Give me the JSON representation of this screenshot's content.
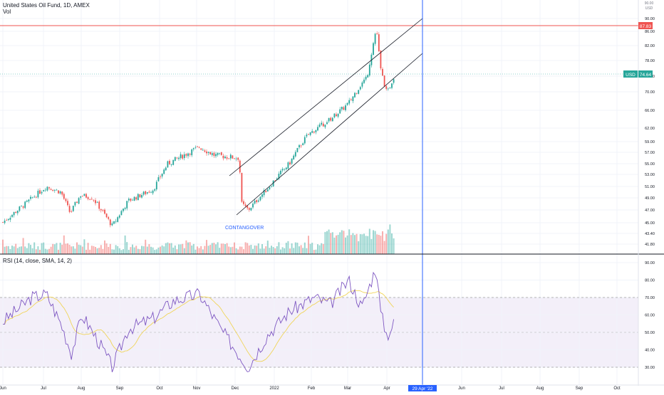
{
  "header": {
    "symbol_title": "United States Oil Fund, 1D, AMEX",
    "volume_label": "Vol",
    "rsi_label": "RSI (14, close, SMA, 14, 2)"
  },
  "badges": {
    "horizontal_level": "87.83",
    "currency": "USD",
    "last_price": "74.64",
    "crosshair_date": "29 Apr '22",
    "scale_toggle_top": "90.00",
    "scale_toggle_mid": "USD"
  },
  "annotations": {
    "contango_text": "CONTANGOVER"
  },
  "colors": {
    "up": "#26a69a",
    "down": "#ef5350",
    "rsi": "#7e57c2",
    "rsi_ma": "#f0d55a",
    "channel": "#131722",
    "level": "#ef5350",
    "crosshair": "#2962ff"
  },
  "chart_data": [
    {
      "type": "candlestick",
      "title": "United States Oil Fund, 1D, AMEX",
      "ylim": [
        40.5,
        91.5
      ],
      "price_ticks": [
        41.8,
        43.4,
        45.0,
        47.0,
        49.0,
        51.0,
        53.0,
        55.0,
        57.0,
        59.0,
        62.0,
        66.0,
        70.0,
        74.0,
        78.0,
        82.0,
        86.0,
        90.0
      ],
      "x_tick_labels": [
        "Jun",
        "Jul",
        "Aug",
        "Sep",
        "Oct",
        "Nov",
        "Dec",
        "2022",
        "Feb",
        "Mar",
        "Apr",
        "Jun",
        "Jul",
        "Aug",
        "Sep",
        "Oct"
      ],
      "horizontal_level": 87.83,
      "last_price": 74.64,
      "channel": {
        "upper": [
          [
            "2021-11-29",
            52.5
          ],
          [
            "2022-04-29",
            89.8
          ]
        ],
        "lower": [
          [
            "2021-12-03",
            46.5
          ],
          [
            "2022-04-29",
            80.0
          ]
        ]
      },
      "approx_closes": [
        {
          "date": "2021-06-01",
          "close": 45.6
        },
        {
          "date": "2021-06-15",
          "close": 48.0
        },
        {
          "date": "2021-07-01",
          "close": 51.0
        },
        {
          "date": "2021-07-12",
          "close": 50.0
        },
        {
          "date": "2021-07-19",
          "close": 46.5
        },
        {
          "date": "2021-07-27",
          "close": 49.5
        },
        {
          "date": "2021-08-05",
          "close": 49.0
        },
        {
          "date": "2021-08-20",
          "close": 44.5
        },
        {
          "date": "2021-09-01",
          "close": 48.5
        },
        {
          "date": "2021-09-20",
          "close": 50.5
        },
        {
          "date": "2021-10-01",
          "close": 55.0
        },
        {
          "date": "2021-10-25",
          "close": 58.0
        },
        {
          "date": "2021-11-05",
          "close": 56.5
        },
        {
          "date": "2021-11-24",
          "close": 56.0
        },
        {
          "date": "2021-11-26",
          "close": 48.0
        },
        {
          "date": "2021-12-01",
          "close": 47.0
        },
        {
          "date": "2021-12-15",
          "close": 50.5
        },
        {
          "date": "2022-01-01",
          "close": 55.0
        },
        {
          "date": "2022-01-15",
          "close": 60.5
        },
        {
          "date": "2022-02-01",
          "close": 64.0
        },
        {
          "date": "2022-02-15",
          "close": 67.5
        },
        {
          "date": "2022-03-01",
          "close": 74.0
        },
        {
          "date": "2022-03-08",
          "close": 87.0
        },
        {
          "date": "2022-03-11",
          "close": 76.0
        },
        {
          "date": "2022-03-16",
          "close": 69.5
        },
        {
          "date": "2022-03-22",
          "close": 74.6
        }
      ]
    },
    {
      "type": "bar",
      "title": "Vol",
      "series": [
        {
          "name": "Volume"
        }
      ],
      "relative_values": [
        0.12,
        0.35,
        0.28,
        0.18,
        0.5,
        0.85,
        0.6,
        0.2
      ]
    },
    {
      "type": "line",
      "title": "RSI (14, close, SMA, 14, 2)",
      "ylim": [
        25,
        93
      ],
      "y_ticks": [
        30.0,
        40.0,
        50.0,
        60.0,
        70.0,
        80.0,
        90.0
      ],
      "bands": {
        "upper": 70,
        "middle": 50,
        "lower": 30
      },
      "series": [
        {
          "name": "RSI",
          "points": [
            {
              "date": "2021-06-01",
              "value": 58
            },
            {
              "date": "2021-06-20",
              "value": 70
            },
            {
              "date": "2021-07-01",
              "value": 72
            },
            {
              "date": "2021-07-12",
              "value": 55
            },
            {
              "date": "2021-07-20",
              "value": 38
            },
            {
              "date": "2021-07-28",
              "value": 60
            },
            {
              "date": "2021-08-10",
              "value": 44
            },
            {
              "date": "2021-08-20",
              "value": 30
            },
            {
              "date": "2021-09-01",
              "value": 52
            },
            {
              "date": "2021-09-20",
              "value": 58
            },
            {
              "date": "2021-10-05",
              "value": 68
            },
            {
              "date": "2021-10-25",
              "value": 72
            },
            {
              "date": "2021-11-10",
              "value": 52
            },
            {
              "date": "2021-11-25",
              "value": 36
            },
            {
              "date": "2021-12-01",
              "value": 30
            },
            {
              "date": "2021-12-15",
              "value": 48
            },
            {
              "date": "2022-01-01",
              "value": 62
            },
            {
              "date": "2022-01-20",
              "value": 70
            },
            {
              "date": "2022-02-01",
              "value": 66
            },
            {
              "date": "2022-02-15",
              "value": 80
            },
            {
              "date": "2022-02-25",
              "value": 64
            },
            {
              "date": "2022-03-08",
              "value": 88
            },
            {
              "date": "2022-03-11",
              "value": 62
            },
            {
              "date": "2022-03-16",
              "value": 48
            },
            {
              "date": "2022-03-22",
              "value": 56
            }
          ]
        },
        {
          "name": "RSI-based MA"
        }
      ]
    }
  ]
}
